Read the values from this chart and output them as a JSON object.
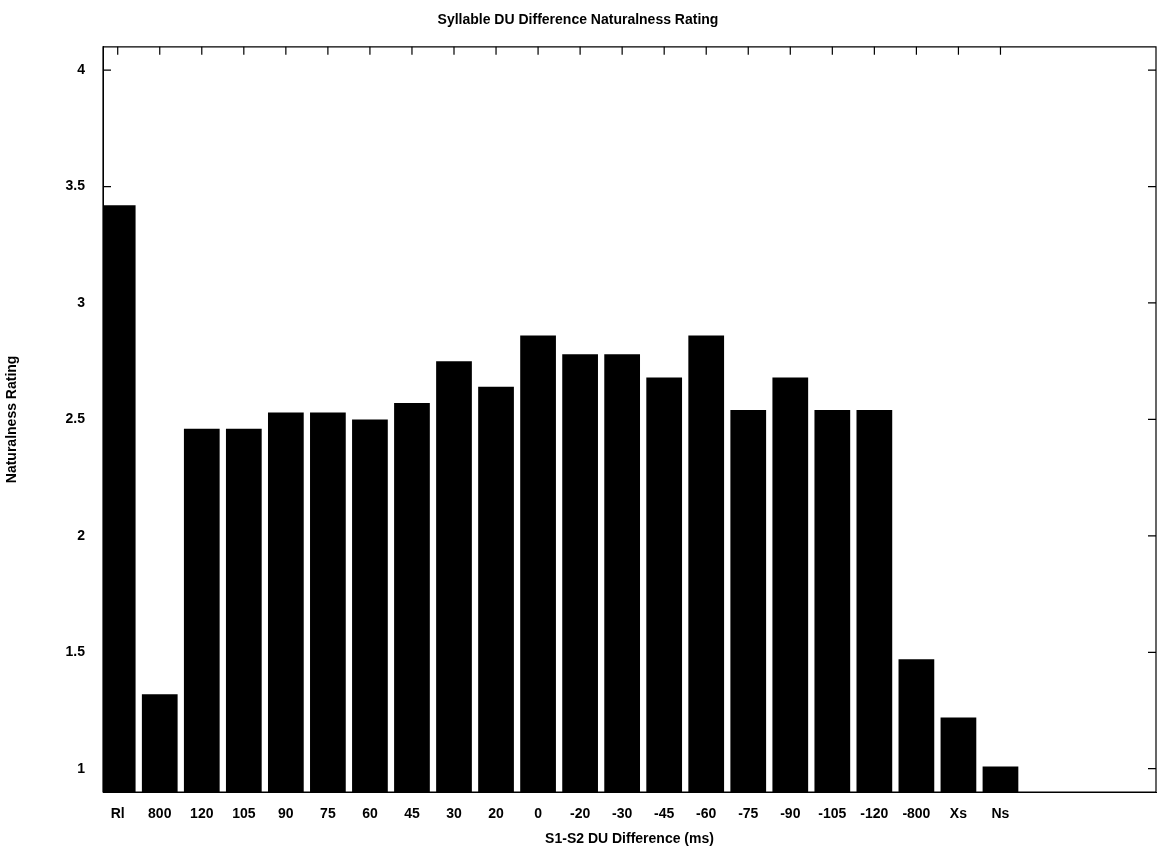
{
  "chart_data": {
    "type": "bar",
    "title": "Syllable DU Difference Naturalness Rating",
    "xlabel": "S1-S2 DU Difference (ms)",
    "ylabel": "Naturalness Rating",
    "categories": [
      "Rl",
      "800",
      "120",
      "105",
      "90",
      "75",
      "60",
      "45",
      "30",
      "20",
      "0",
      "-20",
      "-30",
      "-45",
      "-60",
      "-75",
      "-90",
      "-105",
      "-120",
      "-800",
      "Xs",
      "Ns"
    ],
    "values": [
      3.42,
      1.32,
      2.46,
      2.46,
      2.53,
      2.53,
      2.5,
      2.57,
      2.75,
      2.64,
      2.86,
      2.78,
      2.78,
      2.68,
      2.86,
      2.54,
      2.68,
      2.54,
      2.54,
      1.47,
      1.22,
      1.01
    ],
    "color": "#000000",
    "ylim": [
      0.9,
      4.1
    ],
    "yticks": [
      1,
      1.5,
      2,
      2.5,
      3,
      3.5,
      4
    ]
  }
}
